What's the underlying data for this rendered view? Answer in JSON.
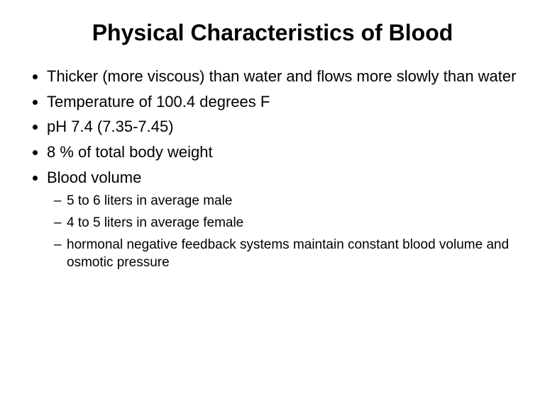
{
  "title": "Physical Characteristics of Blood",
  "bullets": {
    "b0": "Thicker (more viscous) than water and flows more slowly than water",
    "b1": "Temperature of 100.4 degrees F",
    "b2": "pH 7.4 (7.35-7.45)",
    "b3": "8 % of total body weight",
    "b4": "Blood volume",
    "b4_sub": {
      "s0": "5 to 6 liters in average male",
      "s1": "4 to 5 liters in average female",
      "s2": "hormonal negative feedback systems maintain constant blood volume and osmotic pressure"
    }
  },
  "style": {
    "background_color": "#ffffff",
    "text_color": "#000000",
    "title_fontsize": 32,
    "title_fontweight": "bold",
    "bullet_fontsize": 22,
    "sub_bullet_fontsize": 19,
    "font_family": "Arial"
  }
}
